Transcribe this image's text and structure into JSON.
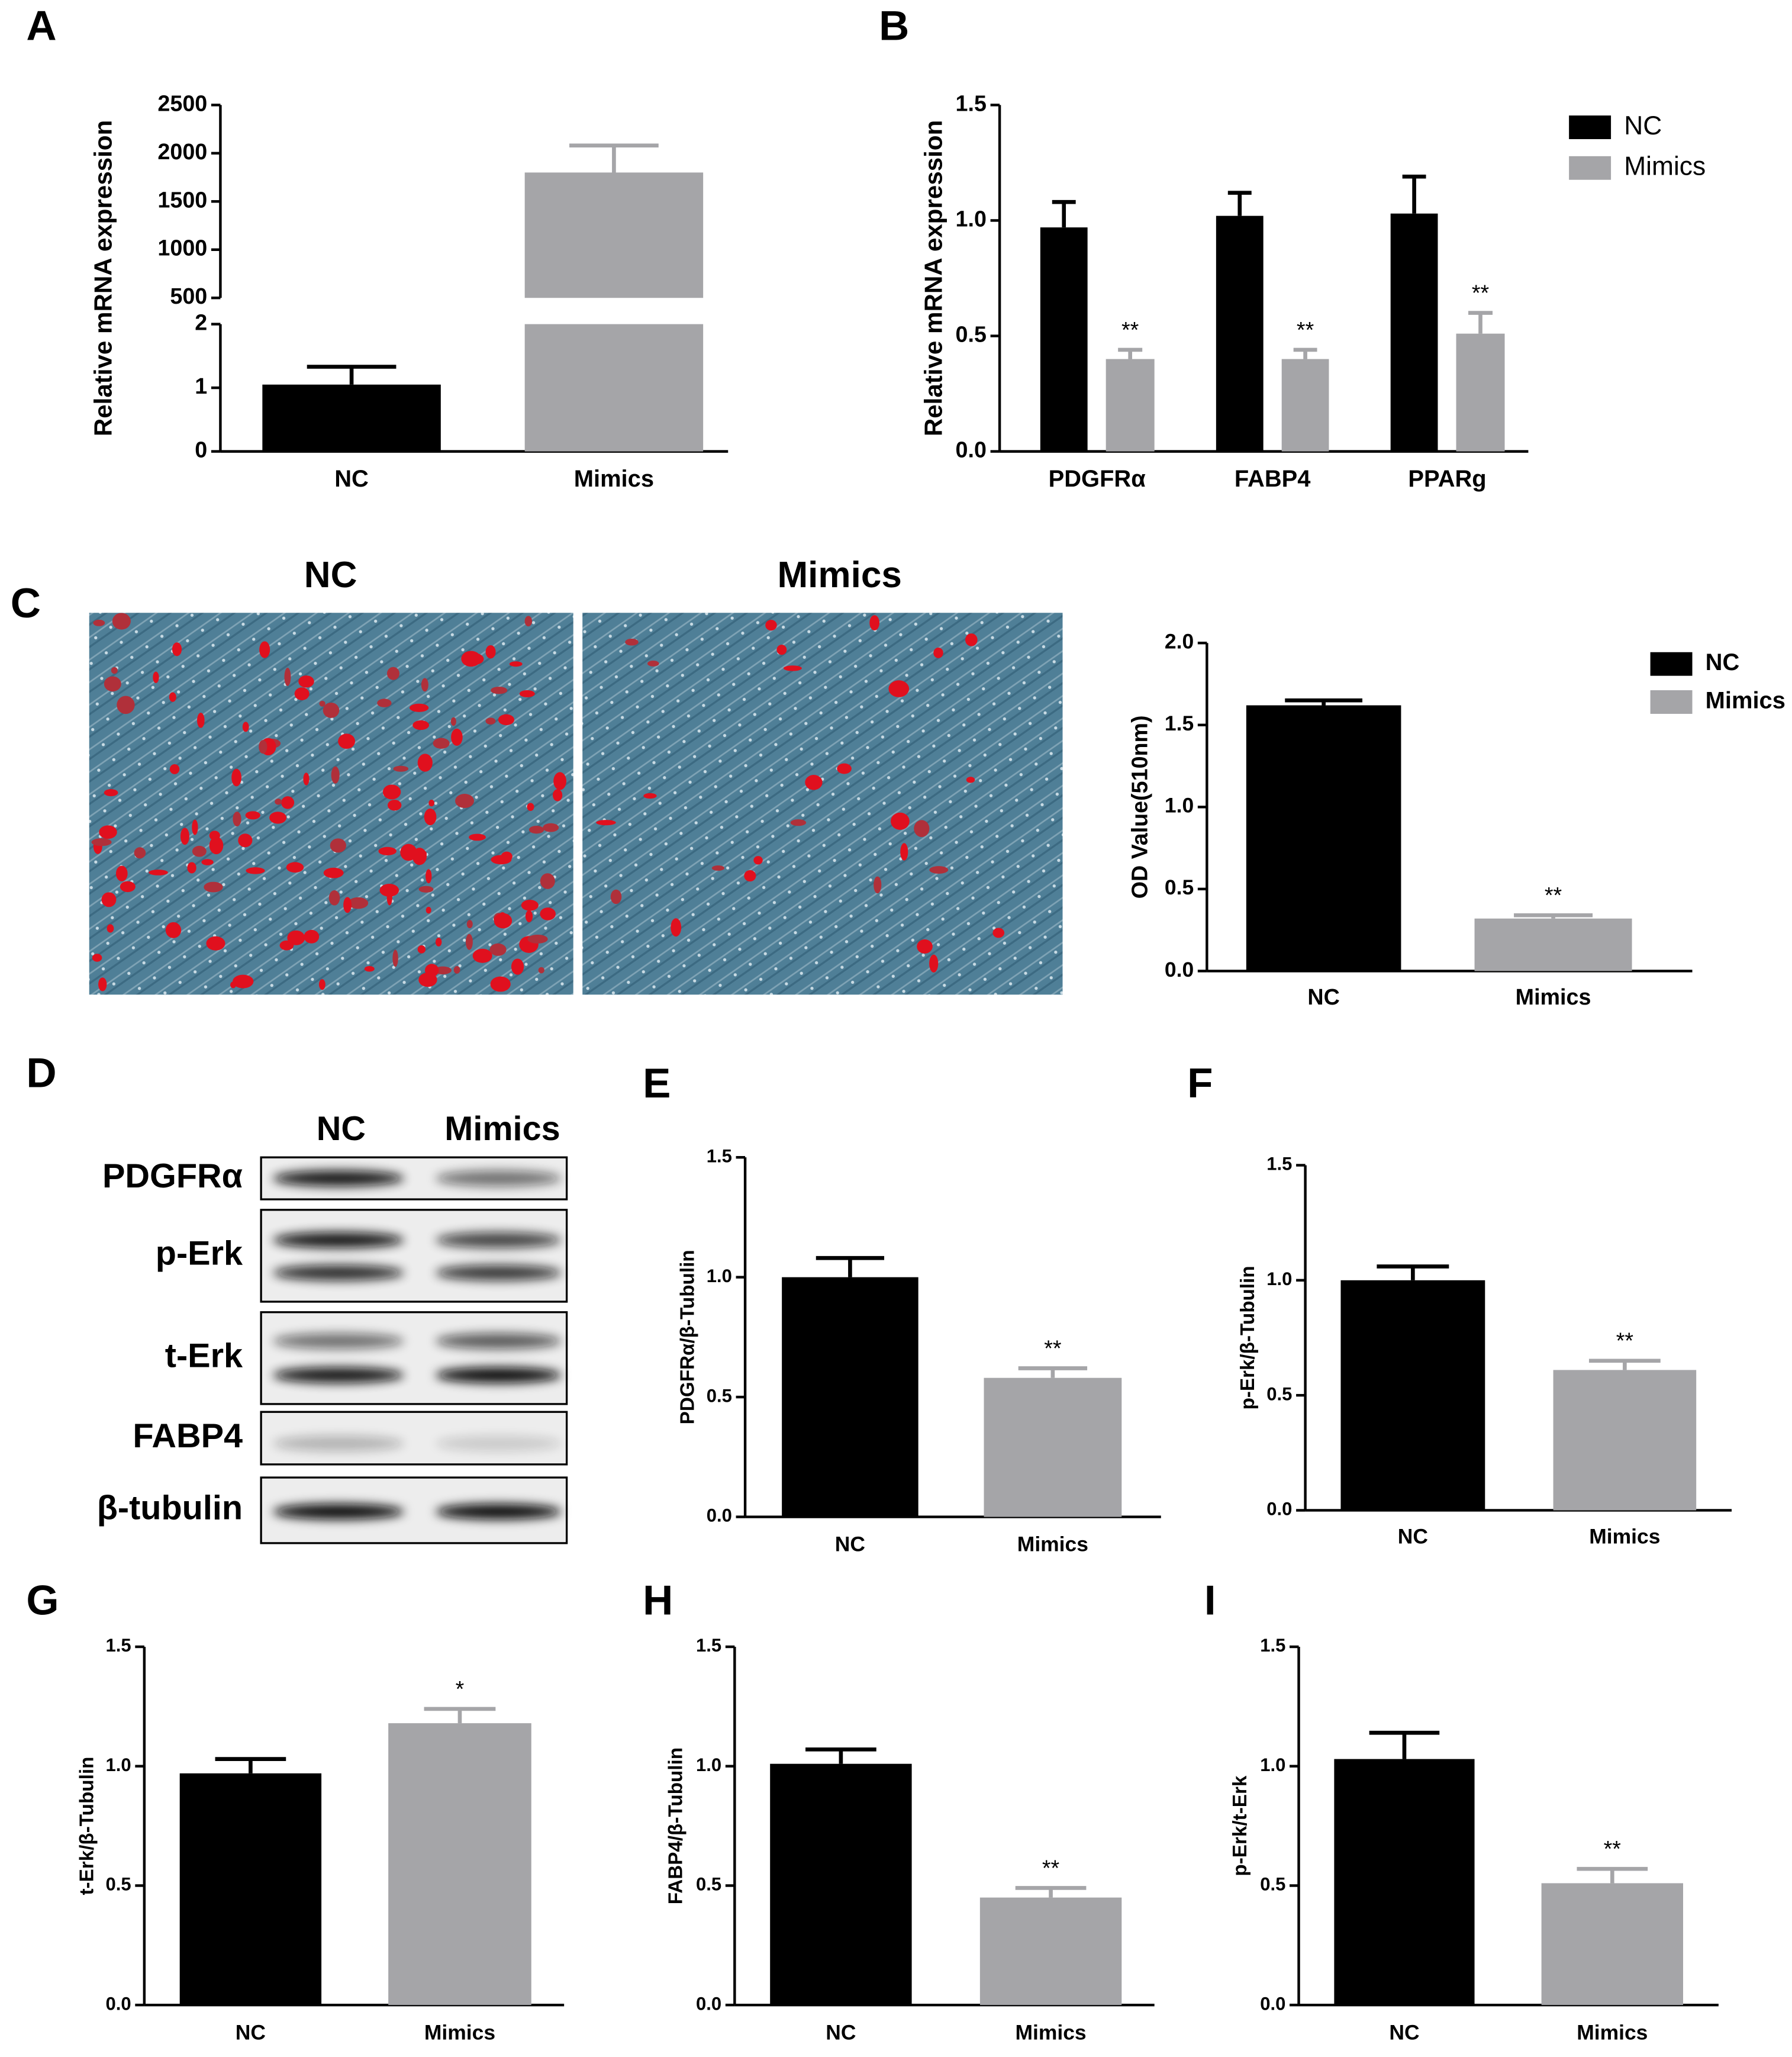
{
  "chart_data": [
    {
      "type": "bar",
      "panel": "A",
      "y_label": "Relative mRNA expression",
      "categories": [
        "NC",
        "Mimics"
      ],
      "values": [
        1.05,
        1800
      ],
      "errors": [
        0.28,
        280
      ],
      "colors": [
        "#000000",
        "#a5a5a8"
      ],
      "axis_break": {
        "lower": {
          "ylim": [
            0,
            2
          ],
          "yticks": [
            0,
            1,
            2
          ]
        },
        "upper": {
          "ylim": [
            500,
            2500
          ],
          "yticks": [
            500,
            1000,
            1500,
            2000,
            2500
          ]
        }
      }
    },
    {
      "type": "bar",
      "panel": "B",
      "y_label": "Relative mRNA expression",
      "categories": [
        "PDGFRα",
        "FABP4",
        "PPARg"
      ],
      "series": [
        {
          "name": "NC",
          "color": "#000000",
          "values": [
            0.97,
            1.02,
            1.03
          ],
          "errors": [
            0.11,
            0.1,
            0.16
          ]
        },
        {
          "name": "Mimics",
          "color": "#a5a5a8",
          "values": [
            0.4,
            0.4,
            0.51
          ],
          "errors": [
            0.04,
            0.04,
            0.09
          ],
          "annotations": [
            "**",
            "**",
            "**"
          ]
        }
      ],
      "ylim": [
        0,
        1.5
      ],
      "yticks": [
        {
          "value": 0,
          "label": "0.0"
        },
        0.5,
        {
          "value": 1,
          "label": "1.0"
        },
        1.5
      ],
      "legend": "upper right"
    },
    {
      "type": "bar",
      "y_label": "OD Value(510nm)",
      "categories": [
        "NC",
        "Mimics"
      ],
      "series": [
        {
          "name": "NC",
          "color": "#000000",
          "values": [
            1.62,
            null
          ],
          "errors": [
            0.03,
            null
          ]
        },
        {
          "name": "Mimics",
          "color": "#a5a5a8",
          "values": [
            null,
            0.32
          ],
          "errors": [
            null,
            0.02
          ],
          "annotations": [
            null,
            "**"
          ]
        }
      ],
      "ylim": [
        0,
        2
      ],
      "yticks": [
        {
          "value": 0,
          "label": "0.0"
        },
        0.5,
        {
          "value": 1,
          "label": "1.0"
        },
        1.5,
        {
          "value": 2,
          "label": "2.0"
        }
      ],
      "legend": "upper right"
    },
    {
      "type": "bar",
      "panel": "E",
      "y_label": "PDGFRα/β-Tubulin",
      "categories": [
        "NC",
        "Mimics"
      ],
      "values": [
        1.0,
        0.58
      ],
      "errors": [
        0.08,
        0.04
      ],
      "annotations": [
        null,
        "**"
      ],
      "colors": [
        "#000000",
        "#a5a5a8"
      ],
      "ylim": [
        0,
        1.5
      ],
      "yticks": [
        {
          "value": 0,
          "label": "0.0"
        },
        0.5,
        {
          "value": 1,
          "label": "1.0"
        },
        1.5
      ]
    },
    {
      "type": "bar",
      "panel": "F",
      "y_label": "p-Erk/β-Tubulin",
      "categories": [
        "NC",
        "Mimics"
      ],
      "values": [
        1.0,
        0.61
      ],
      "errors": [
        0.06,
        0.04
      ],
      "annotations": [
        null,
        "**"
      ],
      "colors": [
        "#000000",
        "#a5a5a8"
      ],
      "ylim": [
        0,
        1.5
      ],
      "yticks": [
        {
          "value": 0,
          "label": "0.0"
        },
        0.5,
        {
          "value": 1,
          "label": "1.0"
        },
        1.5
      ]
    },
    {
      "type": "bar",
      "panel": "G",
      "y_label": "t-Erk/β-Tubulin",
      "categories": [
        "NC",
        "Mimics"
      ],
      "values": [
        0.97,
        1.18
      ],
      "errors": [
        0.06,
        0.06
      ],
      "annotations": [
        null,
        "*"
      ],
      "colors": [
        "#000000",
        "#a5a5a8"
      ],
      "ylim": [
        0,
        1.5
      ],
      "yticks": [
        {
          "value": 0,
          "label": "0.0"
        },
        0.5,
        {
          "value": 1,
          "label": "1.0"
        },
        1.5
      ]
    },
    {
      "type": "bar",
      "panel": "H",
      "y_label": "FABP4/β-Tubulin",
      "categories": [
        "NC",
        "Mimics"
      ],
      "values": [
        1.01,
        0.45
      ],
      "errors": [
        0.06,
        0.04
      ],
      "annotations": [
        null,
        "**"
      ],
      "colors": [
        "#000000",
        "#a5a5a8"
      ],
      "ylim": [
        0,
        1.5
      ],
      "yticks": [
        {
          "value": 0,
          "label": "0.0"
        },
        0.5,
        {
          "value": 1,
          "label": "1.0"
        },
        1.5
      ]
    },
    {
      "type": "bar",
      "panel": "I",
      "y_label": "p-Erk/t-Erk",
      "categories": [
        "NC",
        "Mimics"
      ],
      "values": [
        1.03,
        0.51
      ],
      "errors": [
        0.11,
        0.06
      ],
      "annotations": [
        null,
        "**"
      ],
      "colors": [
        "#000000",
        "#a5a5a8"
      ],
      "ylim": [
        0,
        1.5
      ],
      "yticks": [
        {
          "value": 0,
          "label": "0.0"
        },
        0.5,
        {
          "value": 1,
          "label": "1.0"
        },
        1.5
      ]
    }
  ],
  "micrographs": {
    "panel": "C",
    "titles": [
      "NC",
      "Mimics"
    ]
  },
  "blot": {
    "panel": "D",
    "lanes": [
      "NC",
      "Mimics"
    ],
    "proteins": [
      "PDGFRα",
      "p-Erk",
      "t-Erk",
      "FABP4",
      "β-tubulin"
    ]
  }
}
